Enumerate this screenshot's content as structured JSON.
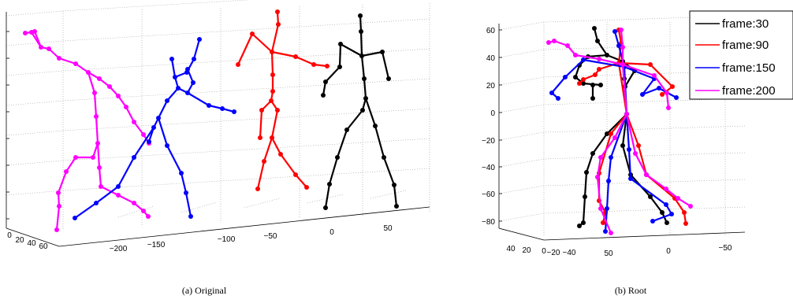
{
  "chart_data": [
    {
      "type": "line",
      "title": "",
      "caption": "(a) Original",
      "view": "3d",
      "x_ticks": [
        "−200",
        "−150",
        "−100",
        "−50",
        "0",
        "50"
      ],
      "depth_ticks": [
        "0",
        "20",
        "40",
        "60"
      ],
      "series_colors": [
        "#ff00ff",
        "#0000ff",
        "#ff0000",
        "#000000"
      ],
      "note": "four skeleton poses drawn side by side"
    },
    {
      "type": "line",
      "title": "",
      "caption": "(b) Root",
      "view": "3d",
      "y_ticks": [
        "60",
        "40",
        "20",
        "0",
        "−20",
        "−40",
        "−60",
        "−80"
      ],
      "x_ticks": [
        "50",
        "0",
        "−50"
      ],
      "depth_ticks": [
        "40",
        "20",
        "0",
        "−20",
        "−40"
      ],
      "ylim": [
        -95,
        65
      ],
      "legend": {
        "placement": "top-right",
        "entries": [
          {
            "label": "frame:30",
            "color": "#000000"
          },
          {
            "label": "frame:90",
            "color": "#ff0000"
          },
          {
            "label": "frame:150",
            "color": "#0000ff"
          },
          {
            "label": "frame:200",
            "color": "#ff00ff"
          }
        ]
      }
    }
  ]
}
